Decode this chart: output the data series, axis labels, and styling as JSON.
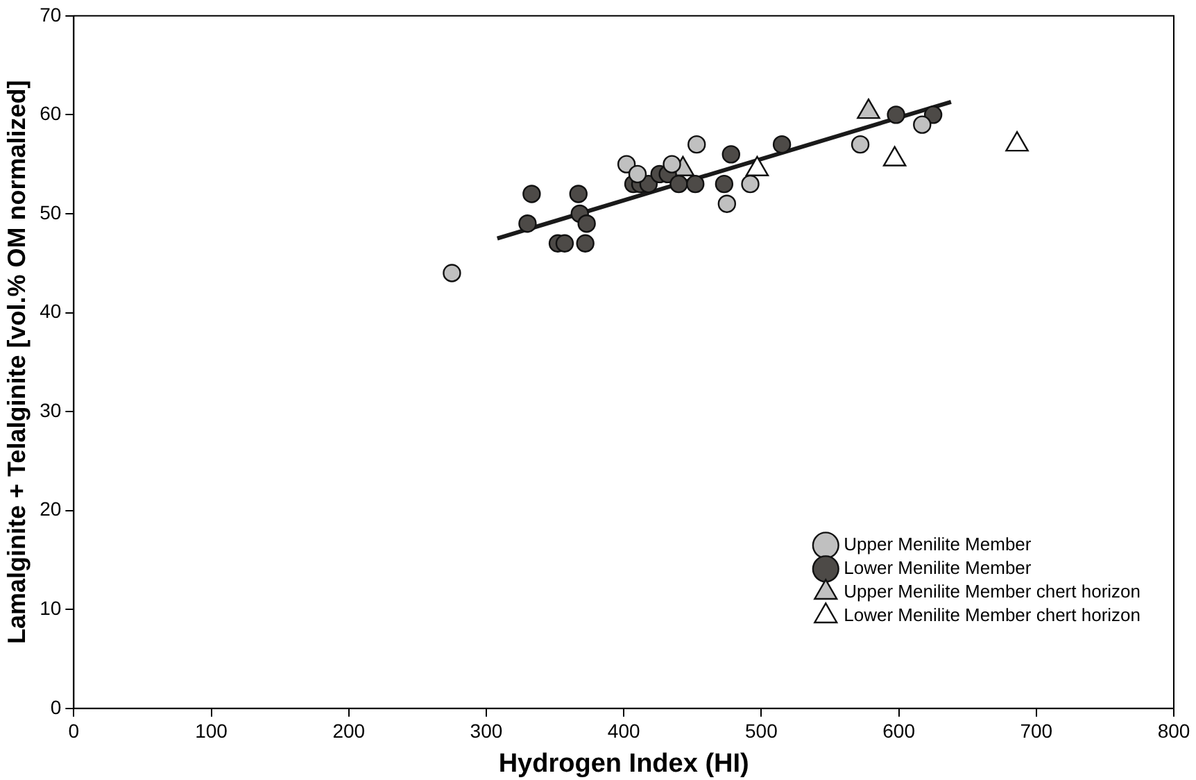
{
  "chart_data": {
    "type": "scatter",
    "xlabel": "Hydrogen Index (HI)",
    "ylabel": "Lamalginite + Telalginite [vol.% OM normalized]",
    "xlim": [
      0,
      800
    ],
    "xticks": [
      0,
      100,
      200,
      300,
      400,
      500,
      600,
      700,
      800
    ],
    "ylim": [
      0,
      70
    ],
    "yticks": [
      0,
      10,
      20,
      30,
      40,
      50,
      60,
      70
    ],
    "grid": false,
    "legend": "bottom right",
    "series": [
      {
        "name": "Upper Menilite Member",
        "color": "#c0c0c0",
        "marker": "circle",
        "x": [
          275,
          402,
          410,
          435,
          453,
          475,
          492,
          572,
          617
        ],
        "values": [
          44,
          55,
          54,
          55,
          57,
          51,
          53,
          57,
          59
        ]
      },
      {
        "name": "Lower Menilite Member",
        "color": "#4d4a47",
        "marker": "circle",
        "x": [
          330,
          333,
          352,
          357,
          367,
          368,
          373,
          372,
          407,
          412,
          418,
          426,
          432,
          440,
          452,
          473,
          478,
          515,
          598,
          625
        ],
        "values": [
          49,
          52,
          47,
          47,
          52,
          50,
          49,
          47,
          53,
          53,
          53,
          54,
          54,
          53,
          53,
          53,
          56,
          57,
          60,
          60
        ]
      },
      {
        "name": "Upper Menilite Member chert horizon",
        "color": "#c0c0c0",
        "marker": "triangle",
        "x": [
          443,
          578
        ],
        "values": [
          54.5,
          60.3
        ]
      },
      {
        "name": "Lower Menilite Member chert horizon",
        "color": "#ffffff",
        "marker": "triangle",
        "x": [
          497,
          597,
          686
        ],
        "values": [
          54.5,
          55.5,
          57
        ]
      },
      {
        "type": "line",
        "color": "#1a1a1a",
        "marker": "none",
        "line_style": "solid",
        "x": [
          308,
          638
        ],
        "values": [
          47.5,
          61.3
        ]
      }
    ]
  }
}
